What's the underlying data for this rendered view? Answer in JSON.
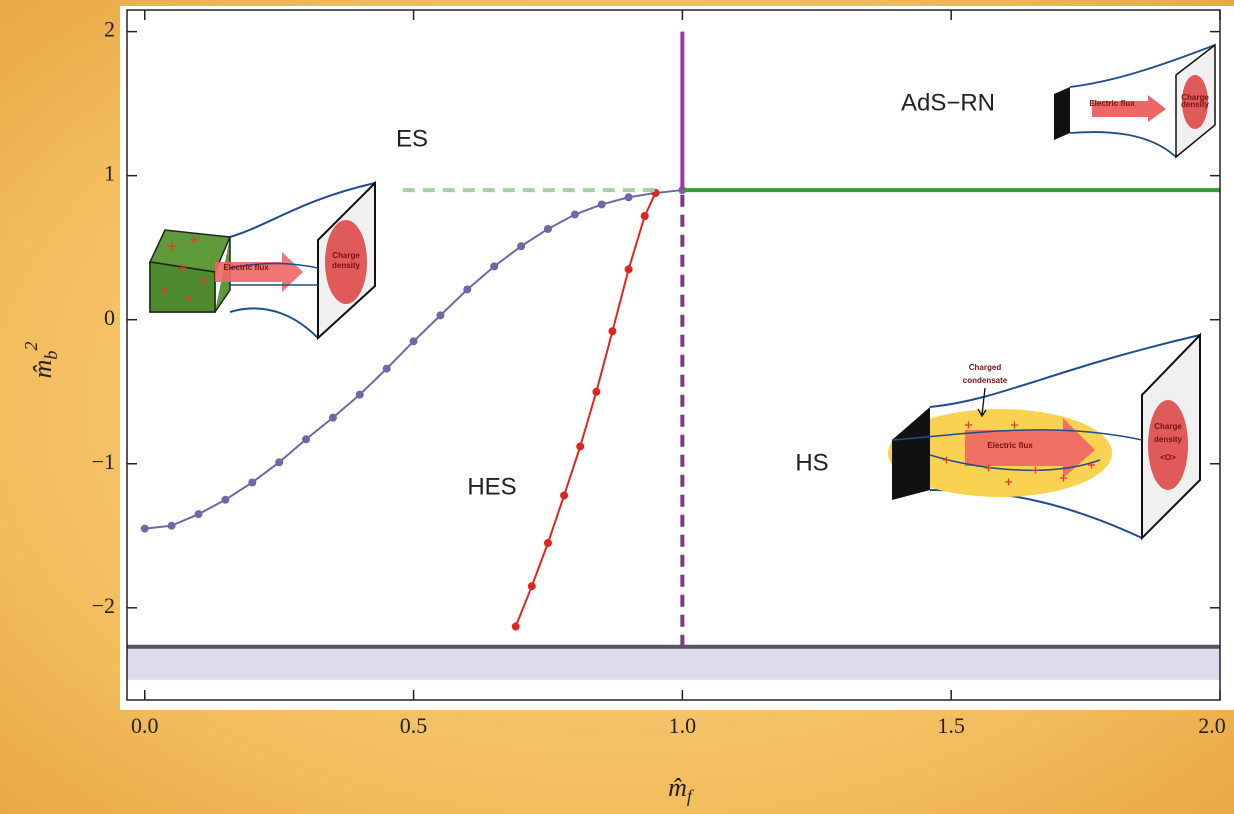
{
  "chart_data": {
    "type": "line",
    "x_label": {
      "base": "m̂",
      "sub": "f"
    },
    "y_label": {
      "base": "m̂",
      "sub": "b",
      "sup": "2"
    },
    "xlim": [
      -0.033,
      2.0
    ],
    "ylim": [
      -2.64,
      2.15
    ],
    "xticks": [
      {
        "value": 0,
        "label": "0.0"
      },
      0.5,
      {
        "value": 1,
        "label": "1.0"
      },
      1.5,
      {
        "value": 2,
        "label": "2.0"
      }
    ],
    "yticks": [
      {
        "value": -2,
        "label": "−2"
      },
      {
        "value": -1,
        "label": "−1"
      },
      0,
      1,
      2
    ],
    "bands": [
      {
        "from": -2.5,
        "to": -2.27,
        "color": "#dcdced"
      }
    ],
    "series": [
      {
        "color": "#6a6aa8",
        "markers": true,
        "style": "solid",
        "x": [
          0,
          0.05,
          0.1,
          0.15,
          0.2,
          0.25,
          0.3,
          0.35,
          0.4,
          0.45,
          0.5,
          0.55,
          0.6,
          0.65,
          0.7,
          0.75,
          0.8,
          0.85,
          0.9,
          0.95,
          1.0
        ],
        "values": [
          -1.45,
          -1.43,
          -1.35,
          -1.25,
          -1.13,
          -0.99,
          -0.83,
          -0.68,
          -0.52,
          -0.34,
          -0.15,
          0.03,
          0.21,
          0.37,
          0.51,
          0.63,
          0.73,
          0.8,
          0.85,
          0.88,
          0.9
        ]
      },
      {
        "color": "#e0261c",
        "markers": true,
        "style": "solid",
        "x": [
          0.69,
          0.72,
          0.75,
          0.78,
          0.81,
          0.84,
          0.87,
          0.9,
          0.93,
          0.95
        ],
        "values": [
          -2.13,
          -1.85,
          -1.55,
          -1.22,
          -0.88,
          -0.5,
          -0.08,
          0.35,
          0.72,
          0.88
        ]
      },
      {
        "color": "#3a9a3a",
        "markers": false,
        "style": "solid",
        "x": [
          1.0,
          2.0
        ],
        "values": [
          0.9,
          0.9
        ]
      },
      {
        "color": "#a8d0a8",
        "markers": false,
        "style": "dashed",
        "x": [
          0.48,
          0.95
        ],
        "values": [
          0.9,
          0.9
        ]
      },
      {
        "color": "#9a3aa0",
        "markers": false,
        "style": "solid",
        "x": [
          1.0,
          1.0
        ],
        "values": [
          0.9,
          2.0
        ]
      },
      {
        "color": "#7a3a80",
        "markers": false,
        "style": "dashed",
        "x": [
          1.0,
          1.0
        ],
        "values": [
          -2.27,
          0.9
        ]
      },
      {
        "color": "#555566",
        "markers": false,
        "style": "solid",
        "x": [
          -0.033,
          2.0
        ],
        "values": [
          -2.27,
          -2.27
        ]
      }
    ],
    "annotations": [
      "ES",
      "AdS−RN",
      "HES",
      "HS"
    ],
    "insets": [
      {
        "flux": "Electric flux",
        "density": [
          "Charge",
          "density"
        ]
      },
      {
        "flux": "Electric flux",
        "density": [
          "Charge",
          "density"
        ]
      },
      {
        "condensate": [
          "Charged",
          "condensate"
        ],
        "flux": "Electric flux",
        "density": [
          "Charge",
          "density",
          "<O>"
        ]
      }
    ]
  }
}
